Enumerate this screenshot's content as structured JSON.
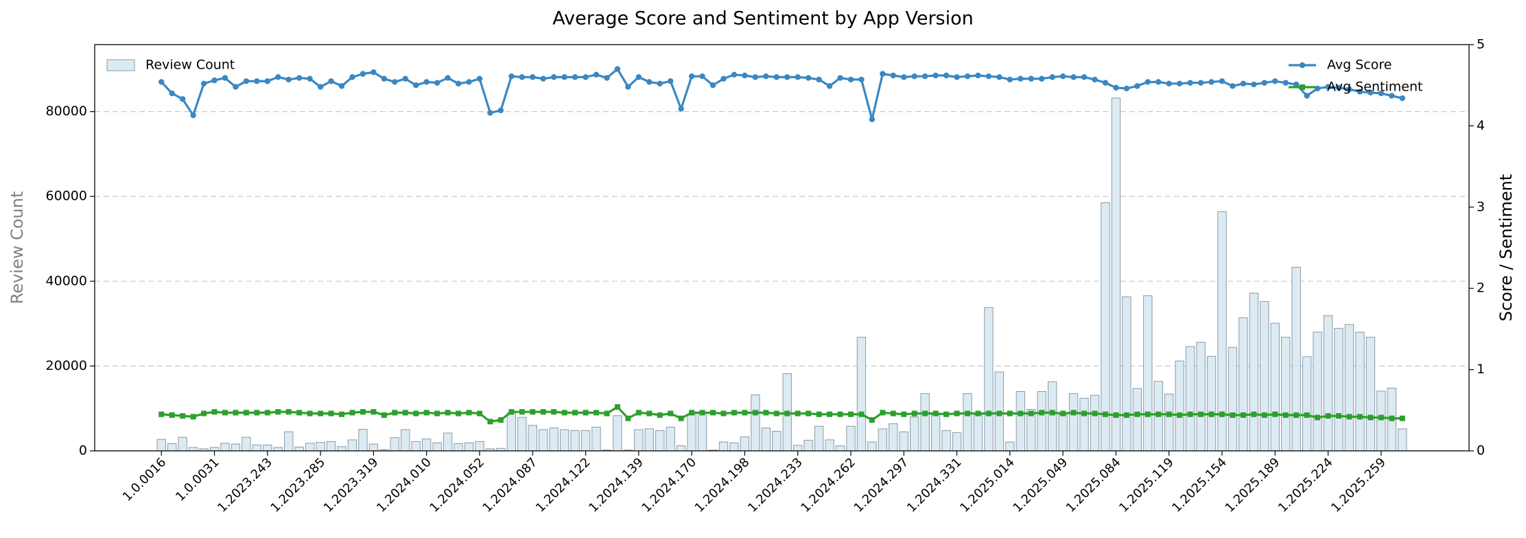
{
  "chart_data": {
    "type": "bar_line",
    "title": "Average Score and Sentiment by App Version",
    "ylabel": "Review Count",
    "y2label": "Score / Sentiment",
    "categories": [
      "1.0.0016",
      null,
      null,
      null,
      null,
      "1.0.0031",
      null,
      null,
      null,
      null,
      "1.2023.243",
      null,
      null,
      null,
      null,
      "1.2023.285",
      null,
      null,
      null,
      null,
      "1.2023.319",
      null,
      null,
      null,
      null,
      "1.2024.010",
      null,
      null,
      null,
      null,
      "1.2024.052",
      null,
      null,
      null,
      null,
      "1.2024.087",
      null,
      null,
      null,
      null,
      "1.2024.122",
      null,
      null,
      null,
      null,
      "1.2024.139",
      null,
      null,
      null,
      null,
      "1.2024.170",
      null,
      null,
      null,
      null,
      "1.2024.198",
      null,
      null,
      null,
      null,
      "1.2024.233",
      null,
      null,
      null,
      null,
      "1.2024.262",
      null,
      null,
      null,
      null,
      "1.2024.297",
      null,
      null,
      null,
      null,
      "1.2024.331",
      null,
      null,
      null,
      null,
      "1.2025.014",
      null,
      null,
      null,
      null,
      "1.2025.049",
      null,
      null,
      null,
      null,
      "1.2025.084",
      null,
      null,
      null,
      null,
      "1.2025.119",
      null,
      null,
      null,
      null,
      "1.2025.154",
      null,
      null,
      null,
      null,
      "1.2025.189",
      null,
      null,
      null,
      null,
      "1.2025.224",
      null,
      null,
      null,
      null,
      "1.2025.259",
      null,
      null
    ],
    "series": [
      {
        "name": "Review Count",
        "kind": "bar",
        "color": "#dceaf3",
        "edgecolor": "#8a9aa6",
        "values": [
          2700,
          1700,
          3200,
          800,
          500,
          800,
          1800,
          1600,
          3200,
          1400,
          1400,
          800,
          4500,
          900,
          1800,
          2000,
          2200,
          1000,
          2600,
          5100,
          1600,
          300,
          3100,
          5000,
          2200,
          2800,
          1900,
          4200,
          1700,
          1900,
          2200,
          500,
          600,
          9000,
          7900,
          6000,
          5000,
          5400,
          5000,
          4800,
          4800,
          5600,
          200,
          8300,
          200,
          5000,
          5200,
          4800,
          5600,
          1200,
          8600,
          8800,
          200,
          2100,
          1900,
          3300,
          13200,
          5400,
          4600,
          18200,
          1300,
          2500,
          5800,
          2600,
          1200,
          5800,
          26800,
          2100,
          5200,
          6400,
          4500,
          8000,
          13500,
          8500,
          4800,
          4300,
          13500,
          8500,
          33800,
          18600,
          2100,
          14000,
          9800,
          14000,
          16300,
          8500,
          13500,
          12400,
          13100,
          58500,
          83200,
          36300,
          14700,
          36600,
          16400,
          13400,
          21200,
          24600,
          25600,
          22300,
          56400,
          24400,
          31400,
          37200,
          35200,
          30100,
          26800,
          43300,
          22200,
          28000,
          31900,
          28900,
          29800,
          28000,
          26800,
          14100,
          14800,
          5200
        ]
      },
      {
        "name": "Avg Score",
        "kind": "line",
        "marker": "circle",
        "axis": "y2",
        "color": "#3a87c2",
        "values": [
          4.54,
          4.4,
          4.33,
          4.13,
          4.52,
          4.56,
          4.59,
          4.48,
          4.55,
          4.55,
          4.55,
          4.6,
          4.57,
          4.59,
          4.58,
          4.48,
          4.55,
          4.49,
          4.6,
          4.64,
          4.66,
          4.58,
          4.54,
          4.58,
          4.5,
          4.54,
          4.53,
          4.59,
          4.52,
          4.54,
          4.58,
          4.16,
          4.19,
          4.61,
          4.6,
          4.6,
          4.58,
          4.6,
          4.6,
          4.6,
          4.6,
          4.63,
          4.59,
          4.7,
          4.48,
          4.6,
          4.54,
          4.52,
          4.55,
          4.21,
          4.61,
          4.61,
          4.5,
          4.58,
          4.63,
          4.62,
          4.6,
          4.61,
          4.6,
          4.6,
          4.6,
          4.59,
          4.57,
          4.49,
          4.59,
          4.57,
          4.57,
          4.08,
          4.64,
          4.62,
          4.6,
          4.61,
          4.61,
          4.62,
          4.62,
          4.6,
          4.61,
          4.62,
          4.61,
          4.6,
          4.57,
          4.58,
          4.58,
          4.58,
          4.6,
          4.61,
          4.6,
          4.6,
          4.57,
          4.53,
          4.47,
          4.46,
          4.49,
          4.54,
          4.54,
          4.52,
          4.52,
          4.53,
          4.53,
          4.54,
          4.55,
          4.49,
          4.52,
          4.51,
          4.53,
          4.55,
          4.53,
          4.51,
          4.37,
          4.46,
          4.48,
          4.47,
          4.45,
          4.42,
          4.41,
          4.4,
          4.37,
          4.34
        ]
      },
      {
        "name": "Avg Sentiment",
        "kind": "line",
        "marker": "square",
        "axis": "y2",
        "color": "#2ca02c",
        "values": [
          0.45,
          0.44,
          0.43,
          0.42,
          0.46,
          0.48,
          0.47,
          0.47,
          0.47,
          0.47,
          0.47,
          0.48,
          0.48,
          0.47,
          0.46,
          0.46,
          0.46,
          0.45,
          0.47,
          0.48,
          0.48,
          0.44,
          0.47,
          0.47,
          0.46,
          0.47,
          0.46,
          0.47,
          0.46,
          0.47,
          0.46,
          0.36,
          0.38,
          0.48,
          0.48,
          0.48,
          0.48,
          0.48,
          0.47,
          0.47,
          0.47,
          0.47,
          0.46,
          0.54,
          0.4,
          0.47,
          0.46,
          0.44,
          0.46,
          0.4,
          0.47,
          0.47,
          0.47,
          0.46,
          0.47,
          0.47,
          0.47,
          0.47,
          0.46,
          0.46,
          0.46,
          0.46,
          0.45,
          0.45,
          0.45,
          0.45,
          0.45,
          0.38,
          0.47,
          0.46,
          0.45,
          0.46,
          0.46,
          0.46,
          0.45,
          0.46,
          0.46,
          0.46,
          0.46,
          0.46,
          0.46,
          0.46,
          0.46,
          0.47,
          0.47,
          0.46,
          0.47,
          0.46,
          0.46,
          0.45,
          0.44,
          0.44,
          0.45,
          0.45,
          0.45,
          0.45,
          0.44,
          0.45,
          0.45,
          0.45,
          0.45,
          0.44,
          0.44,
          0.45,
          0.44,
          0.45,
          0.44,
          0.44,
          0.44,
          0.41,
          0.43,
          0.43,
          0.42,
          0.42,
          0.41,
          0.41,
          0.4,
          0.4
        ]
      }
    ],
    "ylim": [
      0,
      95800
    ],
    "yticks": [
      0,
      20000,
      40000,
      60000,
      80000
    ],
    "y2lim": [
      0,
      5
    ],
    "y2ticks": [
      0,
      1,
      2,
      3,
      4,
      5
    ],
    "grid": true,
    "legend": "upper left",
    "legend2": "upper right"
  }
}
